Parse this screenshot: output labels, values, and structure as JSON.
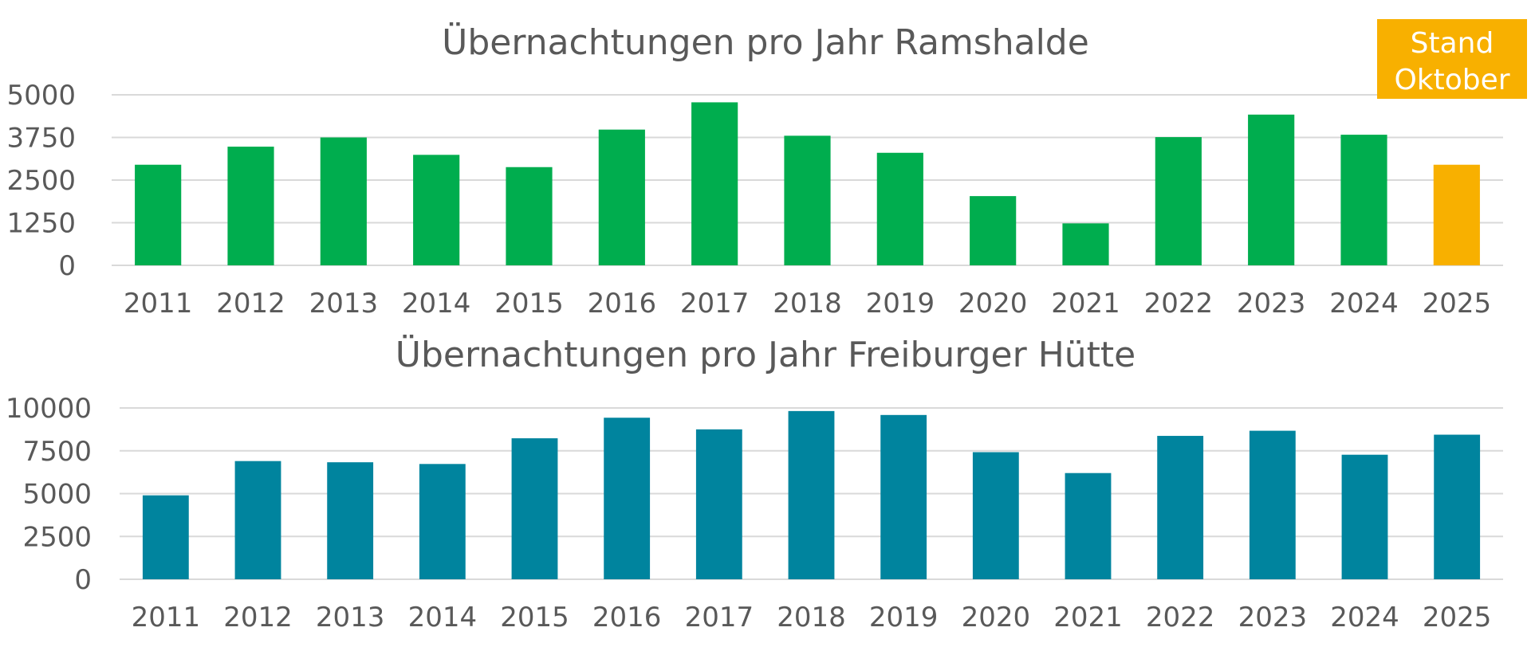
{
  "colors": {
    "ramshalde_bar": "#00ad4e",
    "highlight_bar": "#f8b000",
    "freiburger_bar": "#00849e",
    "grid": "#d9d9d9",
    "text": "#595959",
    "note_bg": "#f8b000",
    "note_text": "#ffffff"
  },
  "note": {
    "line1": "Stand",
    "line2": "Oktober"
  },
  "chart_data": [
    {
      "type": "bar",
      "title": "Übernachtungen pro Jahr Ramshalde",
      "categories": [
        "2011",
        "2012",
        "2013",
        "2014",
        "2015",
        "2016",
        "2017",
        "2018",
        "2019",
        "2020",
        "2021",
        "2022",
        "2023",
        "2024",
        "2025"
      ],
      "values": [
        2950,
        3480,
        3750,
        3240,
        2880,
        3980,
        4780,
        3800,
        3300,
        2030,
        1230,
        3760,
        4420,
        3830,
        2950
      ],
      "highlight_index": 14,
      "yticks": [
        "0",
        "1250",
        "2500",
        "3750",
        "5000"
      ],
      "ylim": [
        0,
        5000
      ],
      "grid": true,
      "legend": "none"
    },
    {
      "type": "bar",
      "title": "Übernachtungen pro Jahr Freiburger Hütte",
      "categories": [
        "2011",
        "2012",
        "2013",
        "2014",
        "2015",
        "2016",
        "2017",
        "2018",
        "2019",
        "2020",
        "2021",
        "2022",
        "2023",
        "2024",
        "2025"
      ],
      "values": [
        4900,
        6900,
        6830,
        6730,
        8230,
        9430,
        8750,
        9820,
        9590,
        7420,
        6200,
        8370,
        8670,
        7270,
        8440
      ],
      "yticks": [
        "0",
        "2500",
        "5000",
        "7500",
        "10000"
      ],
      "ylim": [
        0,
        10000
      ],
      "grid": true,
      "legend": "none"
    }
  ]
}
